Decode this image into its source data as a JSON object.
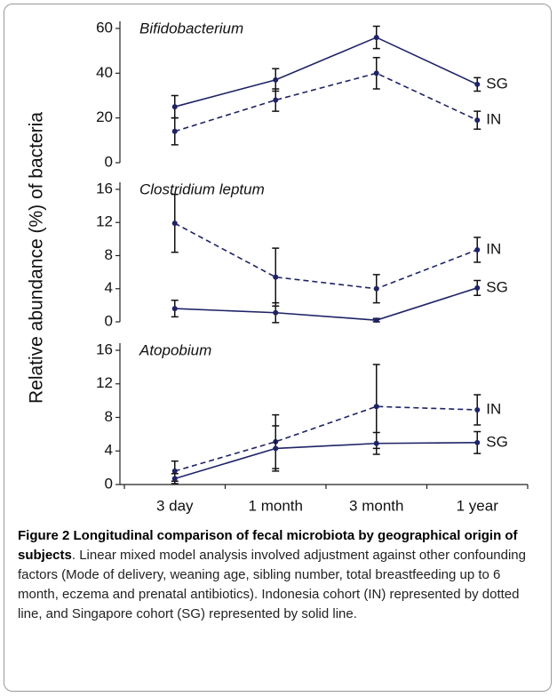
{
  "ylabel": "Relative abundance (%) of bacteria",
  "chart_data": [
    {
      "type": "line",
      "title": "Bifidobacterium",
      "ylim": [
        0,
        60
      ],
      "yticks": [
        0,
        20,
        40,
        60
      ],
      "series": [
        {
          "name": "SG",
          "color": "#1f2366",
          "line_style": "solid",
          "values": [
            25,
            37,
            56,
            35
          ],
          "errors": [
            5,
            5,
            5,
            3
          ]
        },
        {
          "name": "IN",
          "color": "#1f2366",
          "line_style": "dashed",
          "values": [
            14,
            28,
            40,
            19
          ],
          "errors": [
            6,
            5,
            7,
            4
          ]
        }
      ]
    },
    {
      "type": "line",
      "title": "Clostridium leptum",
      "ylim": [
        0,
        16
      ],
      "yticks": [
        0,
        4,
        8,
        12,
        16
      ],
      "series": [
        {
          "name": "IN",
          "color": "#1f2366",
          "line_style": "dashed",
          "values": [
            11.9,
            5.4,
            4.0,
            8.7
          ],
          "errors": [
            3.5,
            3.5,
            1.7,
            1.5
          ]
        },
        {
          "name": "SG",
          "color": "#1f2366",
          "line_style": "solid",
          "values": [
            1.6,
            1.1,
            0.2,
            4.1
          ],
          "errors": [
            1,
            1.2,
            0.2,
            0.9
          ]
        }
      ]
    },
    {
      "type": "line",
      "title": "Atopobium",
      "ylim": [
        0,
        16
      ],
      "yticks": [
        0,
        4,
        8,
        12,
        16
      ],
      "categories": [
        "3 day",
        "1 month",
        "3 month",
        "1 year"
      ],
      "series": [
        {
          "name": "IN",
          "color": "#1f2366",
          "line_style": "dashed",
          "values": [
            1.6,
            5.1,
            9.3,
            8.9
          ],
          "errors": [
            1.2,
            3.2,
            5,
            1.8
          ]
        },
        {
          "name": "SG",
          "color": "#1f2366",
          "line_style": "solid",
          "values": [
            0.7,
            4.3,
            4.9,
            5.0
          ],
          "errors": [
            0.6,
            2.7,
            1.3,
            1.3
          ]
        }
      ]
    }
  ],
  "caption": {
    "title": "Figure 2 Longitudinal comparison of fecal microbiota by geographical origin of subjects",
    "text": ". Linear mixed model analysis involved adjustment against other confounding factors (Mode of delivery, weaning age, sibling number, total breastfeeding up to 6 month, eczema and prenatal antibiotics). Indonesia cohort (IN) represented by dotted line, and Singapore cohort (SG) represented by solid line."
  }
}
